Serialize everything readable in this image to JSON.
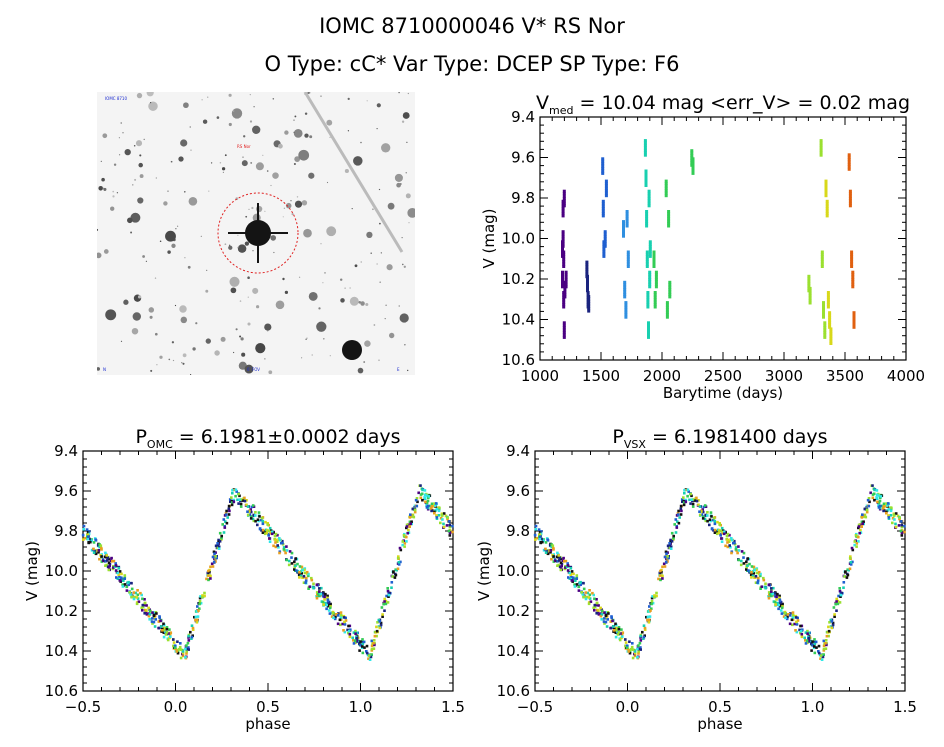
{
  "header": {
    "line1": "IOMC 8710000046    V* RS Nor",
    "line2": "O Type: cC*  Var Type: DCEP   SP Type: F6"
  },
  "finder": {
    "label_top_left": "IOMC 8710",
    "label_marker": "RS Nor",
    "label_bottom_center": "6' FOV",
    "label_bottom_left": "N",
    "label_bottom_right": "E"
  },
  "colors": {
    "purple": "#4b0082",
    "navy": "#1a237e",
    "blue": "#1f5fd0",
    "sky": "#2f8fe0",
    "teal": "#18d0b0",
    "aqua": "#2fe8e8",
    "green": "#33cc55",
    "lime": "#9be030",
    "yellow": "#d8d81a",
    "orange": "#e8a020",
    "darkorange": "#e06010",
    "black": "#111111"
  },
  "chart_data": [
    {
      "type": "scatter",
      "title": "V_med = 10.04 mag <err_V> = 0.02 mag",
      "title_main": "V",
      "title_sub": "med",
      "title_rest": " = 10.04 mag <err_V> = 0.02 mag",
      "xlabel": "Barytime (days)",
      "ylabel": "V (mag)",
      "xlim": [
        1000,
        4000
      ],
      "ylim": [
        10.6,
        9.4
      ],
      "y_inverted": true,
      "xticks": [
        1000,
        1500,
        2000,
        2500,
        3000,
        3500,
        4000
      ],
      "yticks": [
        "9.4",
        "9.6",
        "9.8",
        "10.0",
        "10.2",
        "10.4",
        "10.6"
      ],
      "series": [
        {
          "color": "purple",
          "x": [
            1180,
            1180,
            1185,
            1185,
            1190,
            1190,
            1195,
            1195,
            1200,
            1210
          ],
          "y": [
            10.05,
            10.2,
            10.0,
            9.85,
            10.1,
            10.3,
            9.8,
            10.45,
            10.25,
            10.2
          ]
        },
        {
          "color": "navy",
          "x": [
            1380,
            1385,
            1390,
            1395
          ],
          "y": [
            10.15,
            10.22,
            10.3,
            10.32
          ]
        },
        {
          "color": "blue",
          "x": [
            1510,
            1515,
            1520,
            1530,
            1540
          ],
          "y": [
            9.64,
            9.85,
            10.05,
            10.0,
            9.75
          ]
        },
        {
          "color": "sky",
          "x": [
            1680,
            1690,
            1700,
            1710,
            1720
          ],
          "y": [
            9.95,
            10.25,
            10.35,
            9.9,
            10.1
          ]
        },
        {
          "color": "teal",
          "x": [
            1860,
            1865,
            1870,
            1875,
            1880,
            1885,
            1890,
            1895,
            1900
          ],
          "y": [
            9.55,
            9.7,
            9.9,
            10.1,
            10.3,
            10.45,
            9.8,
            10.2,
            10.05
          ]
        },
        {
          "color": "green",
          "x": [
            1930,
            1940,
            1950,
            2030,
            2040,
            2050,
            2060
          ],
          "y": [
            10.1,
            10.3,
            10.2,
            9.75,
            10.35,
            9.9,
            10.25
          ]
        },
        {
          "color": "green",
          "x": [
            2240,
            2250
          ],
          "y": [
            9.6,
            9.64
          ]
        },
        {
          "color": "lime",
          "x": [
            3200,
            3210,
            3300,
            3310,
            3320,
            3330
          ],
          "y": [
            10.22,
            10.28,
            9.55,
            10.1,
            10.35,
            10.45
          ]
        },
        {
          "color": "yellow",
          "x": [
            3340,
            3350,
            3360,
            3370,
            3380
          ],
          "y": [
            9.75,
            9.85,
            10.3,
            10.4,
            10.48
          ]
        },
        {
          "color": "darkorange",
          "x": [
            3530,
            3540,
            3550,
            3560,
            3570
          ],
          "y": [
            9.62,
            9.8,
            10.1,
            10.2,
            10.4
          ]
        }
      ]
    },
    {
      "type": "scatter",
      "title_main": "P",
      "title_sub": "OMC",
      "title_rest": " = 6.1981±0.0002 days",
      "xlabel": "phase",
      "ylabel": "V (mag)",
      "xlim": [
        -0.5,
        1.5
      ],
      "ylim": [
        10.6,
        9.4
      ],
      "y_inverted": true,
      "xticks": [
        "−0.5",
        "0.0",
        "0.5",
        "1.0",
        "1.5"
      ],
      "yticks": [
        "9.4",
        "9.6",
        "9.8",
        "10.0",
        "10.2",
        "10.4",
        "10.6"
      ],
      "phased_lightcurve": {
        "min_phase": 0.05,
        "max_phase": 0.32,
        "v_max_light": 9.6,
        "v_min_light": 10.42
      }
    },
    {
      "type": "scatter",
      "title_main": "P",
      "title_sub": "VSX",
      "title_rest": " = 6.1981400 days",
      "xlabel": "phase",
      "ylabel": "V (mag)",
      "xlim": [
        -0.5,
        1.5
      ],
      "ylim": [
        10.6,
        9.4
      ],
      "y_inverted": true,
      "xticks": [
        "−0.5",
        "0.0",
        "0.5",
        "1.0",
        "1.5"
      ],
      "yticks": [
        "9.4",
        "9.6",
        "9.8",
        "10.0",
        "10.2",
        "10.4",
        "10.6"
      ],
      "phased_lightcurve": {
        "min_phase": 0.05,
        "max_phase": 0.32,
        "v_max_light": 9.6,
        "v_min_light": 10.42
      }
    }
  ]
}
